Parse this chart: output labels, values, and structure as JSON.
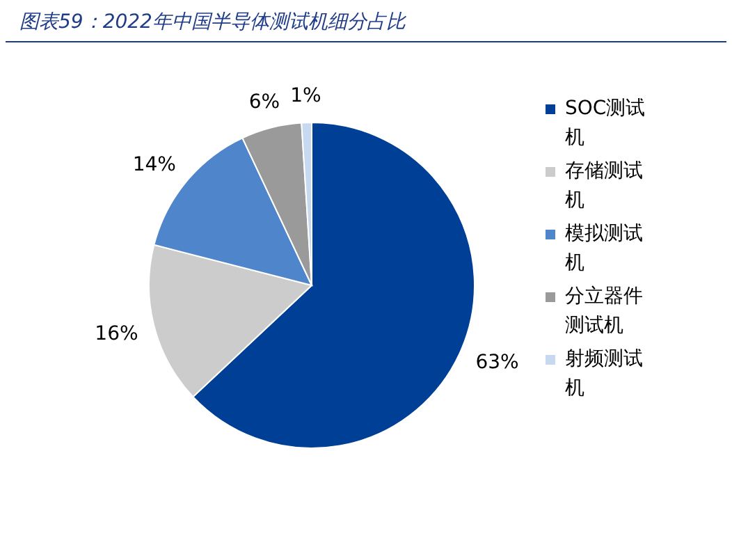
{
  "chart_data": {
    "type": "pie",
    "title": "图表59：2022年中国半导体测试机细分占比",
    "categories": [
      "SOC测试机",
      "存储测试机",
      "模拟测试机",
      "分立器件测试机",
      "射频测试机"
    ],
    "values": [
      63,
      16,
      14,
      6,
      1
    ],
    "colors": [
      "#003f96",
      "#cccccc",
      "#4f85cb",
      "#9a9a9a",
      "#c6d9f0"
    ],
    "value_labels": [
      "63%",
      "16%",
      "14%",
      "6%",
      "1%"
    ],
    "legend": "right"
  }
}
